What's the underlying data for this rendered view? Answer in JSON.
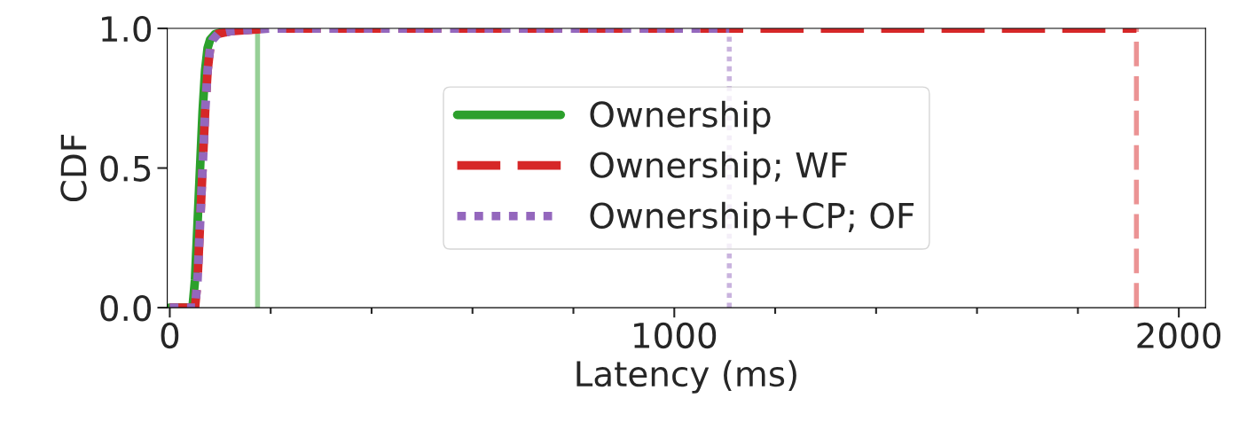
{
  "chart_data": {
    "type": "line",
    "xlabel": "Latency (ms)",
    "ylabel": "CDF",
    "series": [
      {
        "name": "Ownership",
        "color": "#2ca02c",
        "line_style": "solid",
        "x": [
          0,
          45,
          50,
          55,
          60,
          65,
          70,
          75,
          80,
          90,
          110,
          150,
          174
        ],
        "values": [
          0,
          0,
          0.1,
          0.3,
          0.5,
          0.7,
          0.85,
          0.93,
          0.96,
          0.98,
          0.99,
          1.0,
          1.0
        ]
      },
      {
        "name": "Ownership; WF",
        "color": "#d62728",
        "line_style": "dashed",
        "x": [
          0,
          50,
          55,
          60,
          65,
          70,
          75,
          80,
          85,
          95,
          120,
          200,
          1916
        ],
        "values": [
          0,
          0,
          0.1,
          0.3,
          0.5,
          0.7,
          0.85,
          0.93,
          0.96,
          0.98,
          0.99,
          1.0,
          1.0
        ]
      },
      {
        "name": "Ownership+CP; OF",
        "color": "#9467bd",
        "line_style": "dotted",
        "x": [
          0,
          50,
          55,
          60,
          65,
          70,
          75,
          80,
          85,
          95,
          120,
          200,
          1109
        ],
        "values": [
          0,
          0,
          0.1,
          0.3,
          0.5,
          0.7,
          0.85,
          0.93,
          0.96,
          0.98,
          0.99,
          1.0,
          1.0
        ]
      }
    ],
    "ref_lines": [
      {
        "axis": "x",
        "value": 174,
        "color": "#97d097",
        "line_style": "solid"
      },
      {
        "axis": "x",
        "value": 1109,
        "color": "#c9b3de",
        "line_style": "dotted"
      },
      {
        "axis": "x",
        "value": 1916,
        "color": "#eb9394",
        "line_style": "dashed"
      }
    ],
    "xlim": [
      -5,
      2053
    ],
    "ylim": [
      0,
      1
    ],
    "xticks": [
      0,
      {
        "value": 200,
        "label": null
      },
      {
        "value": 400,
        "label": null
      },
      {
        "value": 600,
        "label": null
      },
      {
        "value": 800,
        "label": null
      },
      1000,
      {
        "value": 1200,
        "label": null
      },
      {
        "value": 1400,
        "label": null
      },
      {
        "value": 1600,
        "label": null
      },
      {
        "value": 1800,
        "label": null
      },
      2000
    ],
    "yticks": [
      {
        "value": 0,
        "label": "0.0"
      },
      {
        "value": 0.5,
        "label": "0.5"
      },
      {
        "value": 1,
        "label": "1.0"
      }
    ],
    "grid": false,
    "legend": "center",
    "marker": "none"
  }
}
